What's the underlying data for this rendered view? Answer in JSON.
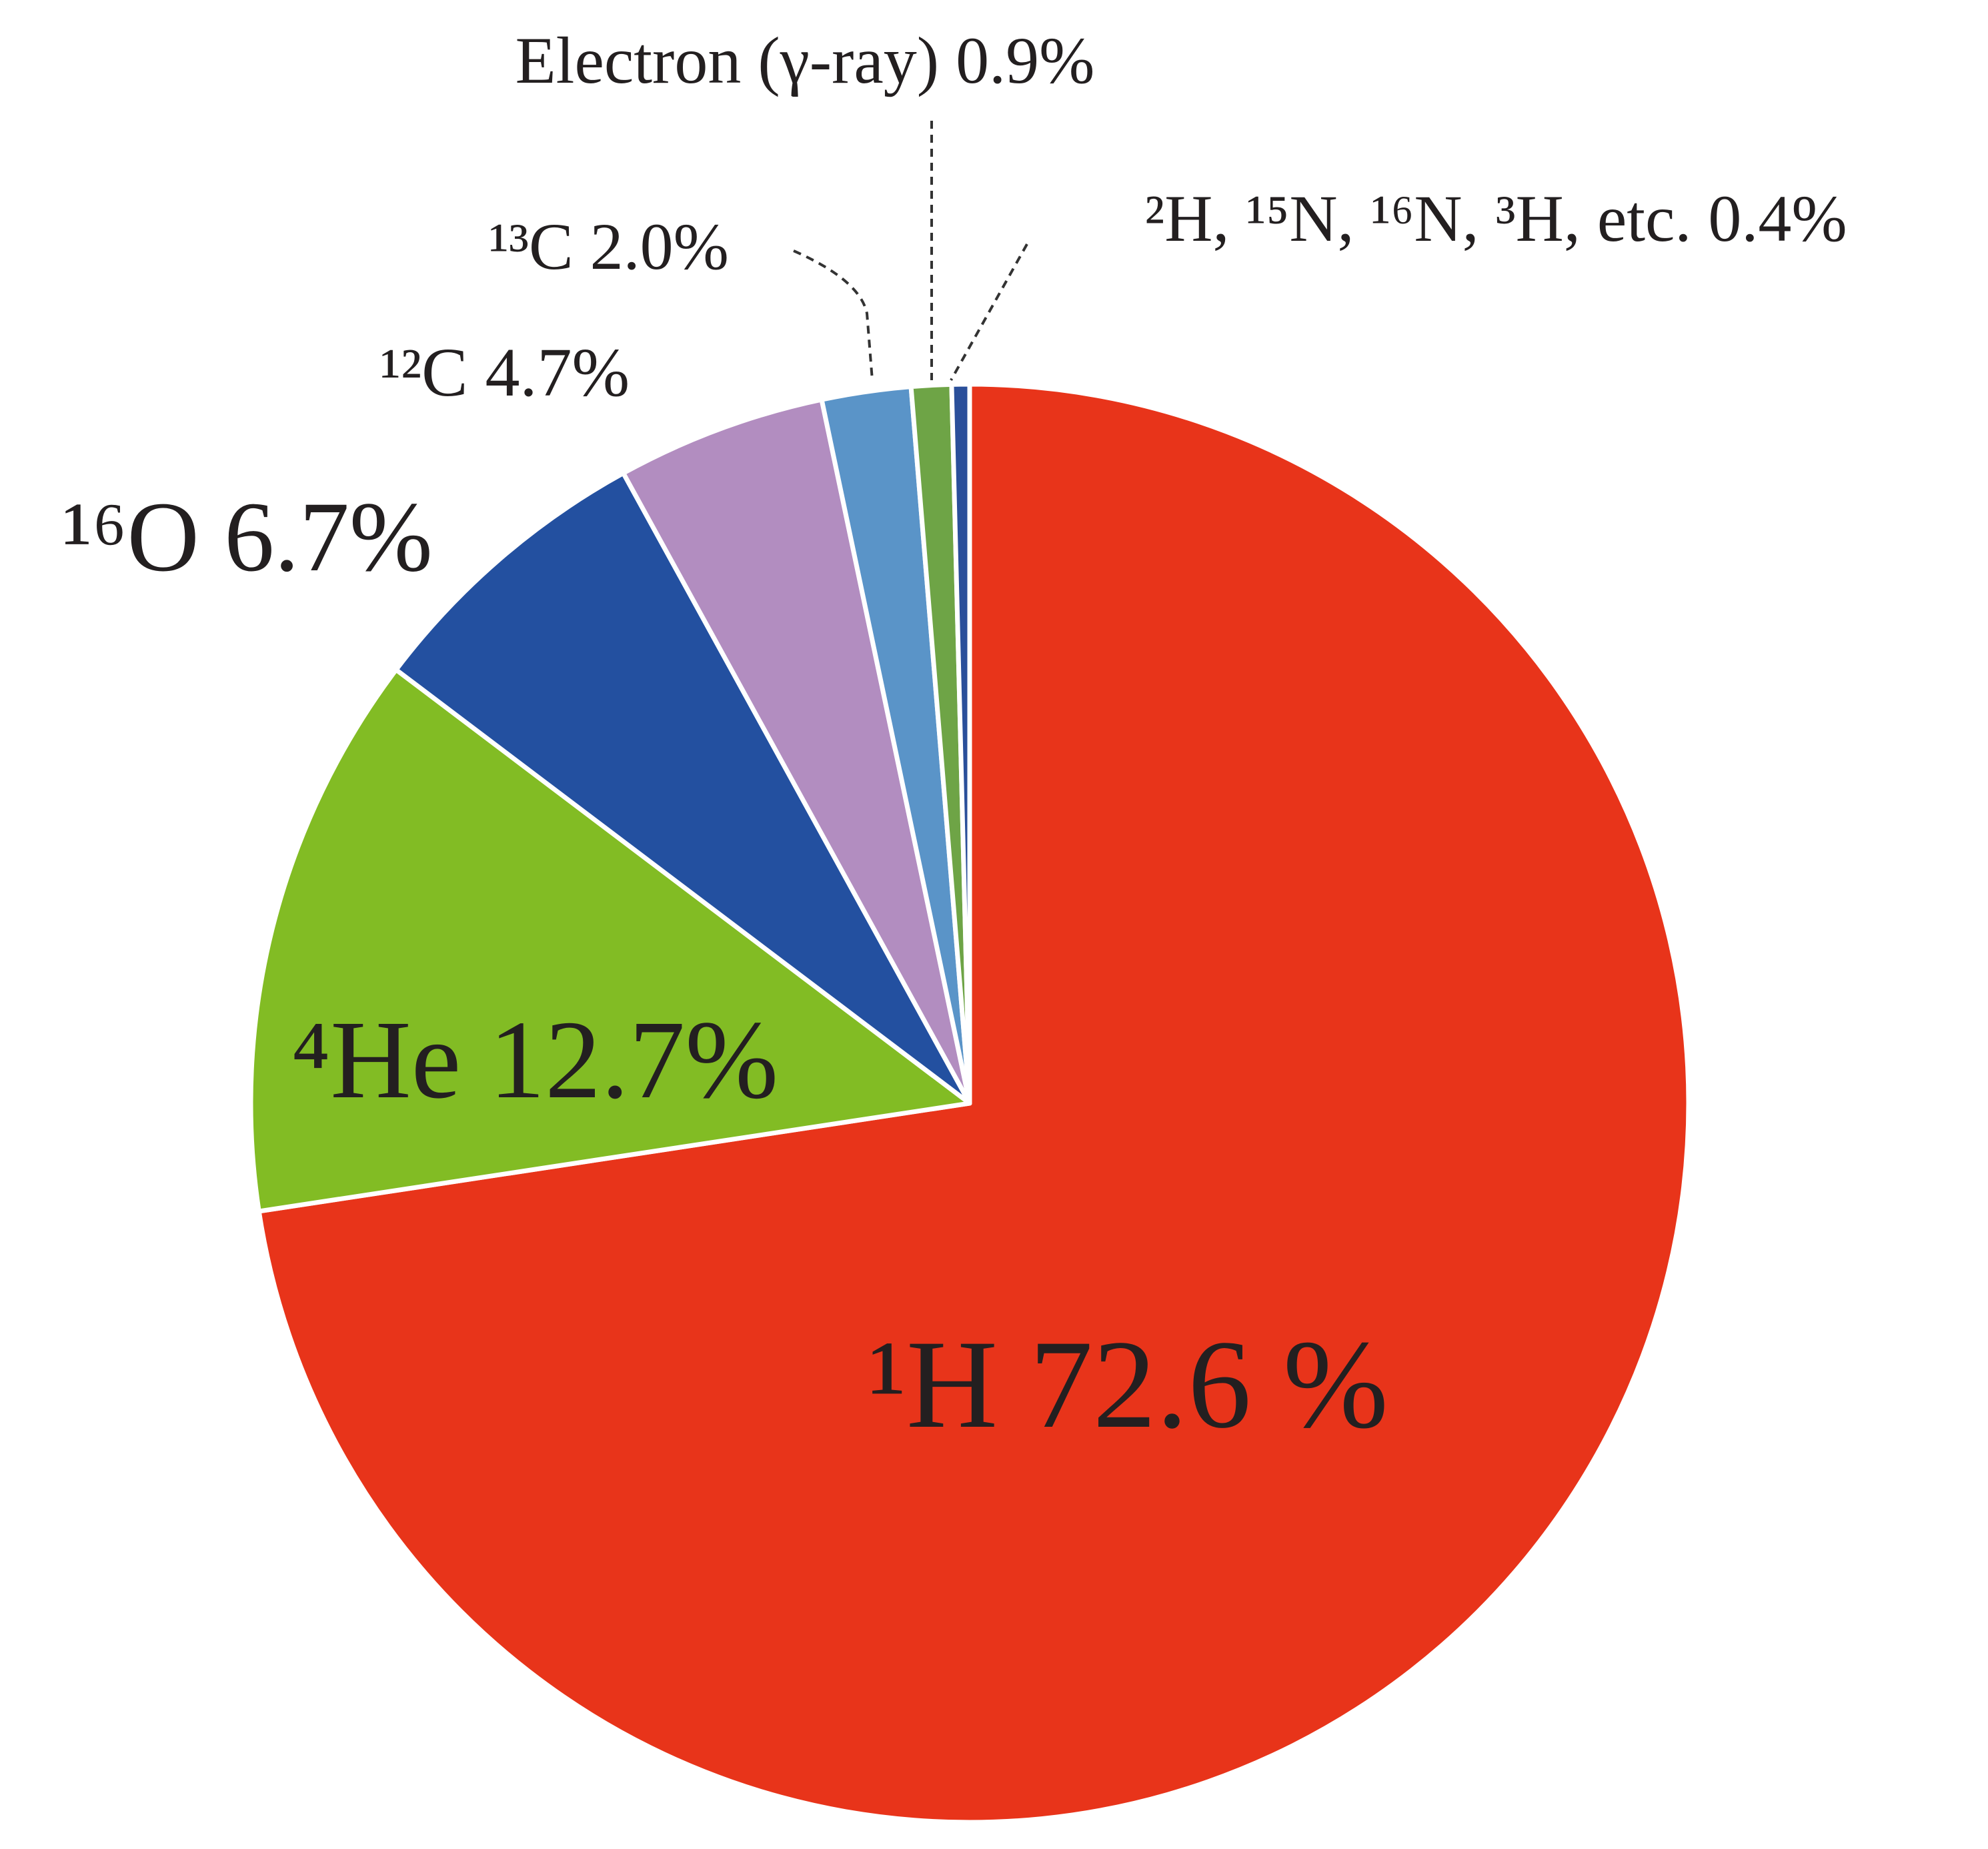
{
  "chart_data": {
    "type": "pie",
    "categories": [
      "¹H",
      "⁴He",
      "¹⁶O",
      "¹²C",
      "¹³C",
      "Electron (γ-ray)",
      "²H, ¹⁵N, ¹⁶N, ³H, etc."
    ],
    "values": [
      72.6,
      12.7,
      6.7,
      4.7,
      2.0,
      0.9,
      0.4
    ],
    "value_labels": [
      "72.6 %",
      "12.7%",
      "6.7%",
      "4.7%",
      "2.0%",
      "0.9%",
      "0.4%"
    ],
    "colors": [
      "#e8341a",
      "#82bc24",
      "#2350a0",
      "#b28dc0",
      "#5a94c8",
      "#6ea446",
      "#2a4f9a"
    ]
  }
}
